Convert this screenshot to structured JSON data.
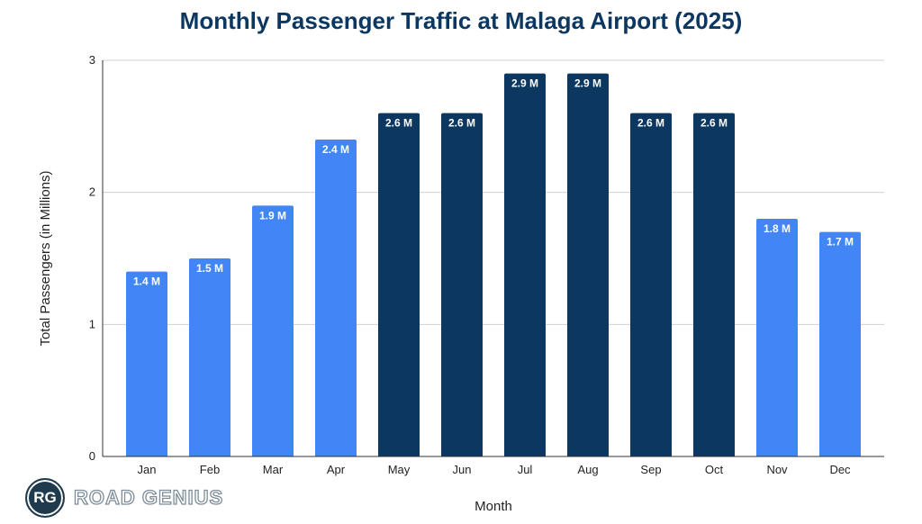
{
  "chart_data": {
    "type": "bar",
    "title": "Monthly Passenger Traffic at Malaga Airport (2025)",
    "xlabel": "Month",
    "ylabel": "Total Passengers (in Millions)",
    "ylim": [
      0,
      3
    ],
    "yticks": [
      0,
      1,
      2,
      3
    ],
    "grid": true,
    "categories": [
      "Jan",
      "Feb",
      "Mar",
      "Apr",
      "May",
      "Jun",
      "Jul",
      "Aug",
      "Sep",
      "Oct",
      "Nov",
      "Dec"
    ],
    "values": [
      1.4,
      1.5,
      1.9,
      2.4,
      2.6,
      2.6,
      2.9,
      2.9,
      2.6,
      2.6,
      1.8,
      1.7
    ],
    "data_labels": [
      "1.4 M",
      "1.5 M",
      "1.9 M",
      "2.4 M",
      "2.6 M",
      "2.6 M",
      "2.9 M",
      "2.9 M",
      "2.6 M",
      "2.6 M",
      "1.8 M",
      "1.7 M"
    ],
    "bar_colors": [
      "#4285f4",
      "#4285f4",
      "#4285f4",
      "#4285f4",
      "#0b3761",
      "#0b3761",
      "#0b3761",
      "#0b3761",
      "#0b3761",
      "#0b3761",
      "#4285f4",
      "#4285f4"
    ]
  },
  "logo": {
    "mark": "RG",
    "text": "ROAD GENIUS"
  }
}
